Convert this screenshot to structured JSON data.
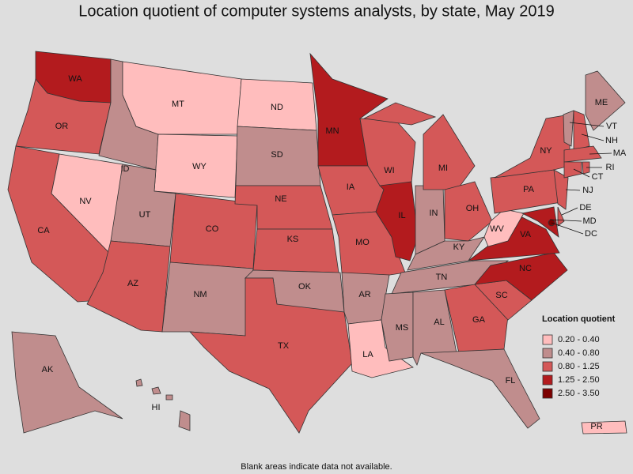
{
  "header": {
    "title": "Location quotient of computer systems analysts, by state, May 2019"
  },
  "map": {
    "states": [
      {
        "abbr": "WA",
        "color": "#b31b1e"
      },
      {
        "abbr": "OR",
        "color": "#d45858"
      },
      {
        "abbr": "CA",
        "color": "#d45858"
      },
      {
        "abbr": "NV",
        "color": "#ffbdbd"
      },
      {
        "abbr": "ID",
        "color": "#c08d8d"
      },
      {
        "abbr": "MT",
        "color": "#ffbdbd"
      },
      {
        "abbr": "WY",
        "color": "#ffbdbd"
      },
      {
        "abbr": "UT",
        "color": "#c08d8d"
      },
      {
        "abbr": "CO",
        "color": "#d45858"
      },
      {
        "abbr": "AZ",
        "color": "#d45858"
      },
      {
        "abbr": "NM",
        "color": "#c08d8d"
      },
      {
        "abbr": "ND",
        "color": "#ffbdbd"
      },
      {
        "abbr": "SD",
        "color": "#c08d8d"
      },
      {
        "abbr": "NE",
        "color": "#d45858"
      },
      {
        "abbr": "KS",
        "color": "#d45858"
      },
      {
        "abbr": "OK",
        "color": "#c08d8d"
      },
      {
        "abbr": "TX",
        "color": "#d45858"
      },
      {
        "abbr": "MN",
        "color": "#b31b1e"
      },
      {
        "abbr": "IA",
        "color": "#d45858"
      },
      {
        "abbr": "MO",
        "color": "#d45858"
      },
      {
        "abbr": "AR",
        "color": "#c08d8d"
      },
      {
        "abbr": "LA",
        "color": "#ffbdbd"
      },
      {
        "abbr": "WI",
        "color": "#d45858"
      },
      {
        "abbr": "IL",
        "color": "#b31b1e"
      },
      {
        "abbr": "IN",
        "color": "#c08d8d"
      },
      {
        "abbr": "MI",
        "color": "#d45858"
      },
      {
        "abbr": "OH",
        "color": "#d45858"
      },
      {
        "abbr": "KY",
        "color": "#c08d8d"
      },
      {
        "abbr": "TN",
        "color": "#c08d8d"
      },
      {
        "abbr": "MS",
        "color": "#c08d8d"
      },
      {
        "abbr": "AL",
        "color": "#c08d8d"
      },
      {
        "abbr": "GA",
        "color": "#d45858"
      },
      {
        "abbr": "FL",
        "color": "#c08d8d"
      },
      {
        "abbr": "SC",
        "color": "#d45858"
      },
      {
        "abbr": "NC",
        "color": "#b31b1e"
      },
      {
        "abbr": "VA",
        "color": "#b31b1e"
      },
      {
        "abbr": "WV",
        "color": "#ffbdbd"
      },
      {
        "abbr": "PA",
        "color": "#d45858"
      },
      {
        "abbr": "NY",
        "color": "#d45858"
      },
      {
        "abbr": "MD",
        "color": "#b31b1e"
      },
      {
        "abbr": "DE",
        "color": "#d45858"
      },
      {
        "abbr": "NJ",
        "color": "#d45858"
      },
      {
        "abbr": "ME",
        "color": "#c08d8d"
      },
      {
        "abbr": "VT",
        "color": "#c08d8d"
      },
      {
        "abbr": "NH",
        "color": "#d45858"
      },
      {
        "abbr": "MA",
        "color": "#d45858"
      },
      {
        "abbr": "CT",
        "color": "#d45858"
      },
      {
        "abbr": "RI",
        "color": "#d45858"
      },
      {
        "abbr": "DC",
        "color": "#7d0000"
      },
      {
        "abbr": "AK",
        "color": "#c08d8d"
      },
      {
        "abbr": "HI",
        "color": "#c08d8d"
      },
      {
        "abbr": "PR",
        "color": "#ffbdbd"
      }
    ]
  },
  "legend": {
    "title": "Location quotient",
    "items": [
      {
        "label": "0.20 - 0.40",
        "color": "#ffbdbd"
      },
      {
        "label": "0.40 - 0.80",
        "color": "#c08d8d"
      },
      {
        "label": "0.80 - 1.25",
        "color": "#d45858"
      },
      {
        "label": "1.25 - 2.50",
        "color": "#b31b1e"
      },
      {
        "label": "2.50 - 3.50",
        "color": "#7d0000"
      }
    ]
  },
  "footnote": "Blank areas indicate data not available."
}
